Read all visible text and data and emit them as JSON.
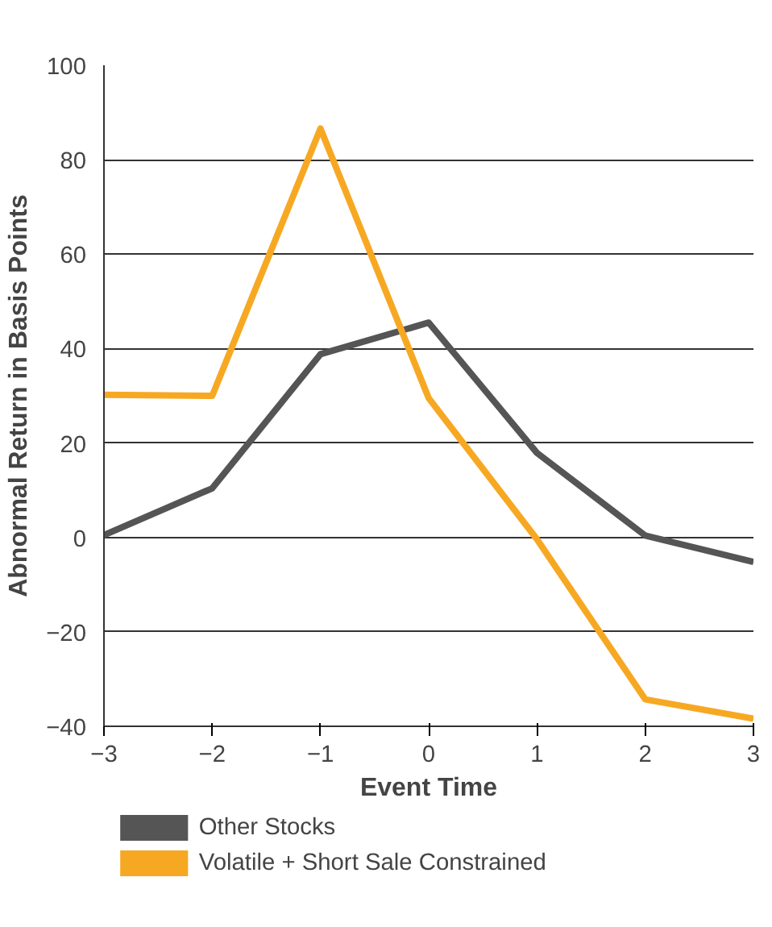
{
  "chart_data": {
    "type": "line",
    "xlabel": "Event Time",
    "ylabel": "Abnormal Return in Basis Points",
    "x": [
      -3,
      -2,
      -1,
      0,
      1,
      2,
      3
    ],
    "series": [
      {
        "name": "Other Stocks",
        "color": "#555555",
        "values": [
          0.5,
          10.4,
          38.8,
          45.5,
          17.9,
          0.4,
          -5.2
        ]
      },
      {
        "name": "Volatile + Short Sale Constrained",
        "color": "#f7a823",
        "values": [
          30.2,
          30,
          86.6,
          29.5,
          -0.4,
          -34.3,
          -38.4
        ]
      }
    ],
    "xlim": [
      -3,
      3
    ],
    "xticks": [
      -3,
      -2,
      -1,
      0,
      1,
      2,
      3
    ],
    "ylim": [
      -40,
      100
    ],
    "yticks": [
      -40,
      -20,
      0,
      20,
      40,
      60,
      80,
      100
    ],
    "grid": "y",
    "legend": "bottom",
    "marker": "none",
    "line_style": "solid"
  }
}
